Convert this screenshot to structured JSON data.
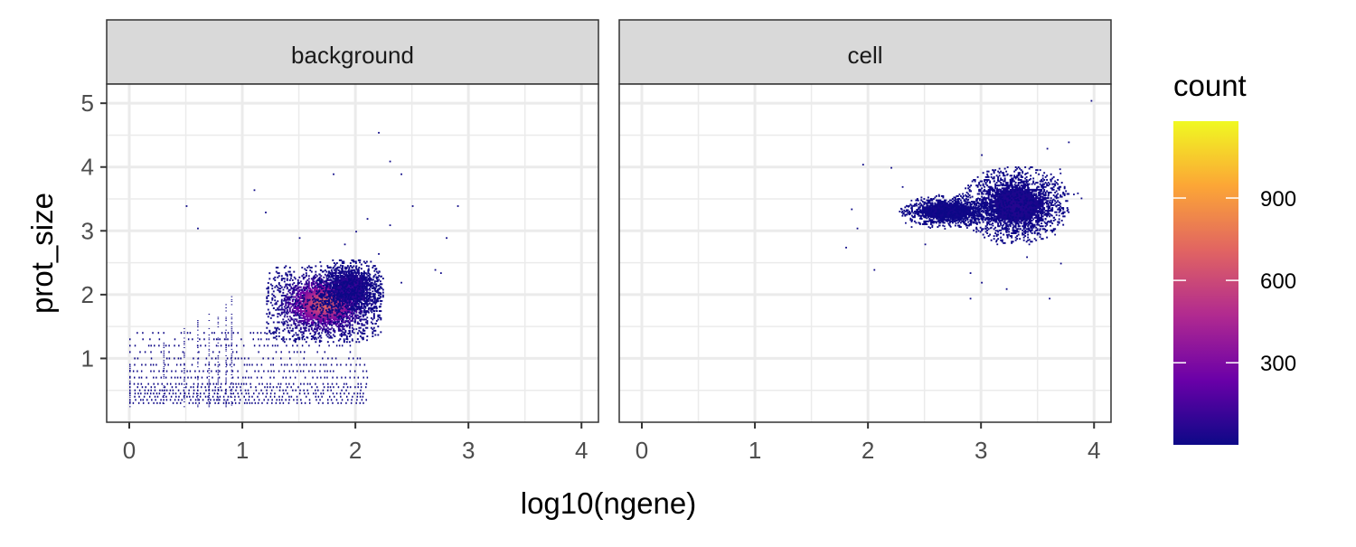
{
  "chart_data": {
    "type": "heatmap",
    "subtype": "2d-binned-count (faceted)",
    "xlabel": "log10(ngene)",
    "ylabel": "prot_size",
    "xlim": [
      -0.2,
      4.15
    ],
    "ylim": [
      0.0,
      5.3
    ],
    "x_ticks": [
      0,
      1,
      2,
      3,
      4
    ],
    "y_ticks": [
      1,
      2,
      3,
      4,
      5
    ],
    "grid": true,
    "legend": {
      "title": "count",
      "placement": "right",
      "colormap": "plasma",
      "range": [
        1,
        1180
      ],
      "ticks": [
        300,
        600,
        900
      ]
    },
    "colors": {
      "low": "#0d0887",
      "mid_low": "#6a00a8",
      "mid": "#b12a90",
      "mid_high": "#e16462",
      "high_orange": "#fca636",
      "high": "#f0f921"
    },
    "facets": [
      {
        "label": "background",
        "clusters": [
          {
            "x": 1.72,
            "y": 1.85,
            "sx": 0.17,
            "sy": 0.2,
            "peak": 700
          },
          {
            "x": 1.95,
            "y": 2.1,
            "sx": 0.1,
            "sy": 0.15,
            "peak": 120
          }
        ],
        "stripes": {
          "x_range": [
            0.0,
            2.1
          ],
          "y_levels": [
            0.3,
            0.35,
            0.4,
            0.45,
            0.5,
            0.55,
            0.6,
            0.7,
            0.8,
            0.9,
            1.0,
            1.1,
            1.2,
            1.3,
            1.4
          ],
          "count": 2
        },
        "scatter": [
          [
            2.1,
            3.2
          ],
          [
            2.3,
            3.1
          ],
          [
            2.2,
            4.55
          ],
          [
            2.3,
            4.1
          ],
          [
            2.5,
            3.4
          ],
          [
            2.8,
            2.9
          ],
          [
            2.9,
            3.4
          ],
          [
            2.7,
            2.4
          ],
          [
            2.75,
            2.35
          ],
          [
            1.8,
            3.9
          ],
          [
            1.2,
            3.3
          ],
          [
            0.6,
            3.05
          ],
          [
            0.5,
            3.4
          ],
          [
            1.1,
            3.65
          ],
          [
            2.4,
            3.9
          ],
          [
            2.2,
            2.65
          ],
          [
            1.5,
            2.9
          ],
          [
            2.0,
            3.0
          ],
          [
            1.9,
            2.8
          ],
          [
            2.4,
            2.2
          ]
        ]
      },
      {
        "label": "cell",
        "clusters": [
          {
            "x": 3.3,
            "y": 3.4,
            "sx": 0.16,
            "sy": 0.2,
            "peak": 60
          },
          {
            "x": 2.7,
            "y": 3.3,
            "sx": 0.15,
            "sy": 0.09,
            "peak": 30
          }
        ],
        "stripes": null,
        "scatter": [
          [
            3.97,
            5.05
          ],
          [
            3.77,
            4.4
          ],
          [
            3.58,
            4.3
          ],
          [
            3.0,
            4.2
          ],
          [
            1.95,
            4.05
          ],
          [
            2.2,
            4.0
          ],
          [
            2.3,
            3.7
          ],
          [
            1.85,
            3.35
          ],
          [
            1.9,
            3.05
          ],
          [
            1.8,
            2.75
          ],
          [
            2.05,
            2.4
          ],
          [
            2.9,
            2.35
          ],
          [
            3.0,
            2.2
          ],
          [
            2.9,
            1.95
          ],
          [
            3.22,
            2.1
          ],
          [
            3.6,
            1.95
          ],
          [
            3.7,
            2.5
          ],
          [
            3.85,
            3.6
          ],
          [
            2.5,
            2.8
          ],
          [
            3.4,
            2.6
          ]
        ]
      }
    ]
  }
}
